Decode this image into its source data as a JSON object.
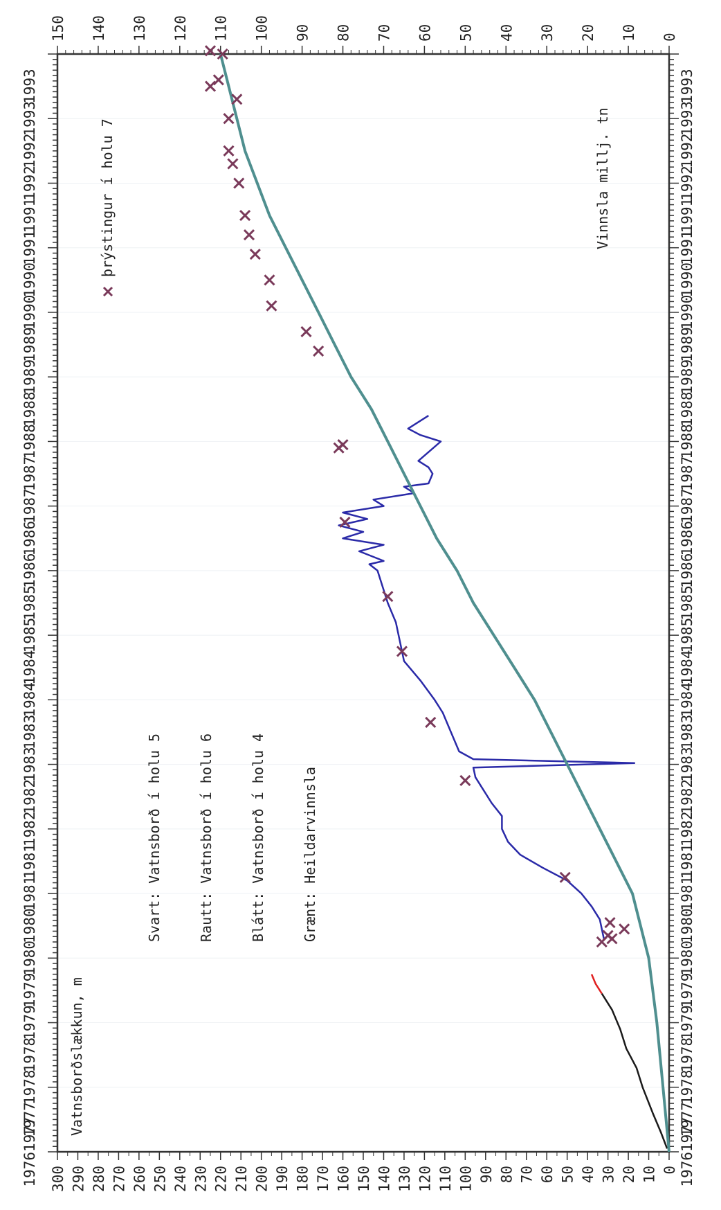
{
  "chart_data": {
    "type": "line",
    "orientation": "rotated-90-clockwise",
    "title": "",
    "x_axis": {
      "label": "",
      "range": [
        1976,
        1993
      ],
      "tick_labels": [
        "19761977",
        "1977",
        "1978",
        "1978",
        "1979",
        "1979",
        "1980",
        "1980",
        "1981",
        "1981",
        "1982",
        "1982",
        "1983",
        "1983",
        "1984",
        "1984",
        "1985",
        "1985",
        "1986",
        "1986",
        "1987",
        "1987",
        "1988",
        "1988",
        "1989",
        "1989",
        "1990",
        "1990",
        "1991",
        "1991",
        "1992",
        "1992",
        "1993",
        "1993"
      ]
    },
    "y_left": {
      "label": "Vatnsborðslækkun, m",
      "range": [
        0,
        300
      ],
      "ticks": [
        0,
        10,
        20,
        30,
        40,
        50,
        60,
        70,
        80,
        90,
        100,
        110,
        120,
        130,
        140,
        150,
        160,
        170,
        180,
        190,
        200,
        210,
        220,
        230,
        240,
        250,
        260,
        270,
        280,
        290,
        300
      ]
    },
    "y_right": {
      "label": "Vinnsla millj. tn",
      "range": [
        0,
        150
      ],
      "ticks": [
        0,
        10,
        20,
        30,
        40,
        50,
        60,
        70,
        80,
        90,
        100,
        110,
        120,
        130,
        140,
        150
      ]
    },
    "legend": {
      "placement": "left",
      "items": [
        {
          "text": "Svart:  Vatnsborð í holu 5",
          "color": "#1a1a1a"
        },
        {
          "text": "Rautt:  Vatnsborð í holu 6",
          "color": "#e02020"
        },
        {
          "text": "Blátt:  Vatnsborð í holu 4",
          "color": "#2a2aa8"
        },
        {
          "text": "Grænt:  Heildarvinnsla",
          "color": "#4f8f8f"
        }
      ],
      "marker_item": {
        "symbol": "×",
        "text": "þrýstingur í holu 7",
        "color": "#7a3a5a"
      }
    },
    "series": [
      {
        "name": "Svart:  Vatnsborð í holu 5",
        "axis": "left",
        "color": "#1a1a1a",
        "points": [
          [
            1976.05,
            1
          ],
          [
            1976.3,
            4
          ],
          [
            1976.6,
            8
          ],
          [
            1977.0,
            13
          ],
          [
            1977.3,
            16
          ],
          [
            1977.6,
            21
          ],
          [
            1977.9,
            24
          ],
          [
            1978.2,
            28
          ],
          [
            1978.45,
            33
          ]
        ]
      },
      {
        "name": "Rautt:  Vatnsborð í holu 6",
        "axis": "left",
        "color": "#e02020",
        "points": [
          [
            1978.45,
            33
          ],
          [
            1978.6,
            36
          ],
          [
            1978.75,
            38
          ]
        ]
      },
      {
        "name": "Blátt:  Vatnsborð í holu 4",
        "axis": "left",
        "color": "#2a2aa8",
        "points": [
          [
            1979.3,
            32
          ],
          [
            1979.6,
            34
          ],
          [
            1979.8,
            38
          ],
          [
            1980.0,
            43
          ],
          [
            1980.2,
            50
          ],
          [
            1980.4,
            62
          ],
          [
            1980.6,
            73
          ],
          [
            1980.8,
            79
          ],
          [
            1981.0,
            82
          ],
          [
            1981.2,
            82
          ],
          [
            1981.4,
            87
          ],
          [
            1981.6,
            91
          ],
          [
            1981.8,
            95
          ],
          [
            1981.95,
            96
          ],
          [
            1982.02,
            17
          ],
          [
            1982.08,
            96
          ],
          [
            1982.2,
            103
          ],
          [
            1982.5,
            107
          ],
          [
            1982.8,
            111
          ],
          [
            1983.0,
            115
          ],
          [
            1983.3,
            122
          ],
          [
            1983.6,
            130
          ],
          [
            1983.9,
            132
          ],
          [
            1984.2,
            134
          ],
          [
            1984.5,
            138
          ],
          [
            1984.8,
            141
          ],
          [
            1985.0,
            143
          ],
          [
            1985.1,
            147
          ],
          [
            1985.15,
            140
          ],
          [
            1985.3,
            152
          ],
          [
            1985.4,
            140
          ],
          [
            1985.5,
            160
          ],
          [
            1985.6,
            150
          ],
          [
            1985.7,
            162
          ],
          [
            1985.8,
            148
          ],
          [
            1985.9,
            160
          ],
          [
            1986.0,
            140
          ],
          [
            1986.1,
            145
          ],
          [
            1986.2,
            125
          ],
          [
            1986.3,
            130
          ],
          [
            1986.35,
            118
          ],
          [
            1986.5,
            116
          ],
          [
            1986.6,
            118
          ],
          [
            1986.7,
            123
          ],
          [
            1987.0,
            112
          ],
          [
            1987.1,
            122
          ],
          [
            1987.2,
            128
          ],
          [
            1987.4,
            118
          ]
        ]
      },
      {
        "name": "Grænt:  Heildarvinnsla",
        "axis": "right",
        "color": "#4f8f8f",
        "points": [
          [
            1976.0,
            0
          ],
          [
            1977.0,
            1.5
          ],
          [
            1978.0,
            3
          ],
          [
            1979.0,
            5
          ],
          [
            1980.0,
            9
          ],
          [
            1980.5,
            13
          ],
          [
            1981.0,
            17
          ],
          [
            1981.5,
            21
          ],
          [
            1982.0,
            25
          ],
          [
            1982.5,
            29
          ],
          [
            1983.0,
            33
          ],
          [
            1983.5,
            38
          ],
          [
            1984.0,
            43
          ],
          [
            1984.5,
            48
          ],
          [
            1985.0,
            52
          ],
          [
            1985.5,
            57
          ],
          [
            1986.0,
            61
          ],
          [
            1986.5,
            65
          ],
          [
            1987.0,
            69
          ],
          [
            1987.5,
            73
          ],
          [
            1988.0,
            78
          ],
          [
            1988.5,
            82
          ],
          [
            1989.0,
            86
          ],
          [
            1989.5,
            90
          ],
          [
            1990.0,
            94
          ],
          [
            1990.5,
            98
          ],
          [
            1991.0,
            101
          ],
          [
            1991.5,
            104
          ],
          [
            1992.0,
            106
          ],
          [
            1992.5,
            108
          ],
          [
            1993.0,
            110
          ]
        ]
      }
    ],
    "markers": {
      "name": "þrýstingur í holu 7",
      "axis": "left",
      "symbol": "x",
      "color": "#7a3a5a",
      "points": [
        [
          1979.25,
          33
        ],
        [
          1979.3,
          28
        ],
        [
          1979.35,
          30
        ],
        [
          1979.45,
          22
        ],
        [
          1979.55,
          29
        ],
        [
          1980.25,
          51
        ],
        [
          1981.75,
          100
        ],
        [
          1982.65,
          117
        ],
        [
          1983.75,
          131
        ],
        [
          1984.6,
          138
        ],
        [
          1985.75,
          159
        ],
        [
          1986.9,
          162
        ],
        [
          1986.95,
          160
        ],
        [
          1988.4,
          172
        ],
        [
          1988.7,
          178
        ],
        [
          1989.1,
          195
        ],
        [
          1989.5,
          196
        ],
        [
          1989.9,
          203
        ],
        [
          1990.2,
          206
        ],
        [
          1990.5,
          208
        ],
        [
          1991.0,
          211
        ],
        [
          1991.3,
          214
        ],
        [
          1991.5,
          216
        ],
        [
          1992.0,
          216
        ],
        [
          1992.3,
          212
        ],
        [
          1992.5,
          225
        ],
        [
          1992.6,
          221
        ],
        [
          1993.0,
          219
        ],
        [
          1993.05,
          225
        ]
      ]
    }
  }
}
